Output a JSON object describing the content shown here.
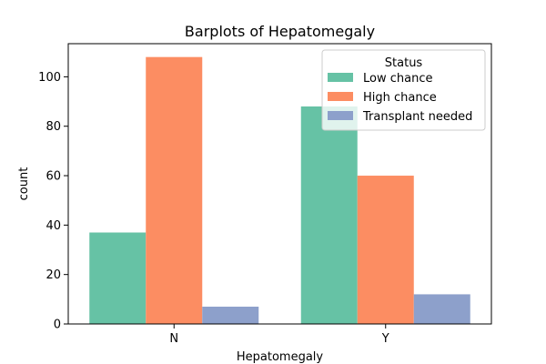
{
  "chart_data": {
    "type": "bar",
    "title": "Barplots of Hepatomegaly",
    "xlabel": "Hepatomegaly",
    "ylabel": "count",
    "categories": [
      "N",
      "Y"
    ],
    "series": [
      {
        "name": "Low chance",
        "values": [
          37,
          88
        ],
        "color": "#66c2a5"
      },
      {
        "name": "High chance",
        "values": [
          108,
          60
        ],
        "color": "#fc8d62"
      },
      {
        "name": "Transplant needed",
        "values": [
          7,
          12
        ],
        "color": "#8da0cb"
      }
    ],
    "ylim": [
      0,
      113.4
    ],
    "yticks": [
      0,
      20,
      40,
      60,
      80,
      100
    ],
    "grid": false,
    "legend": {
      "title": "Status",
      "placement": "top-right"
    }
  }
}
